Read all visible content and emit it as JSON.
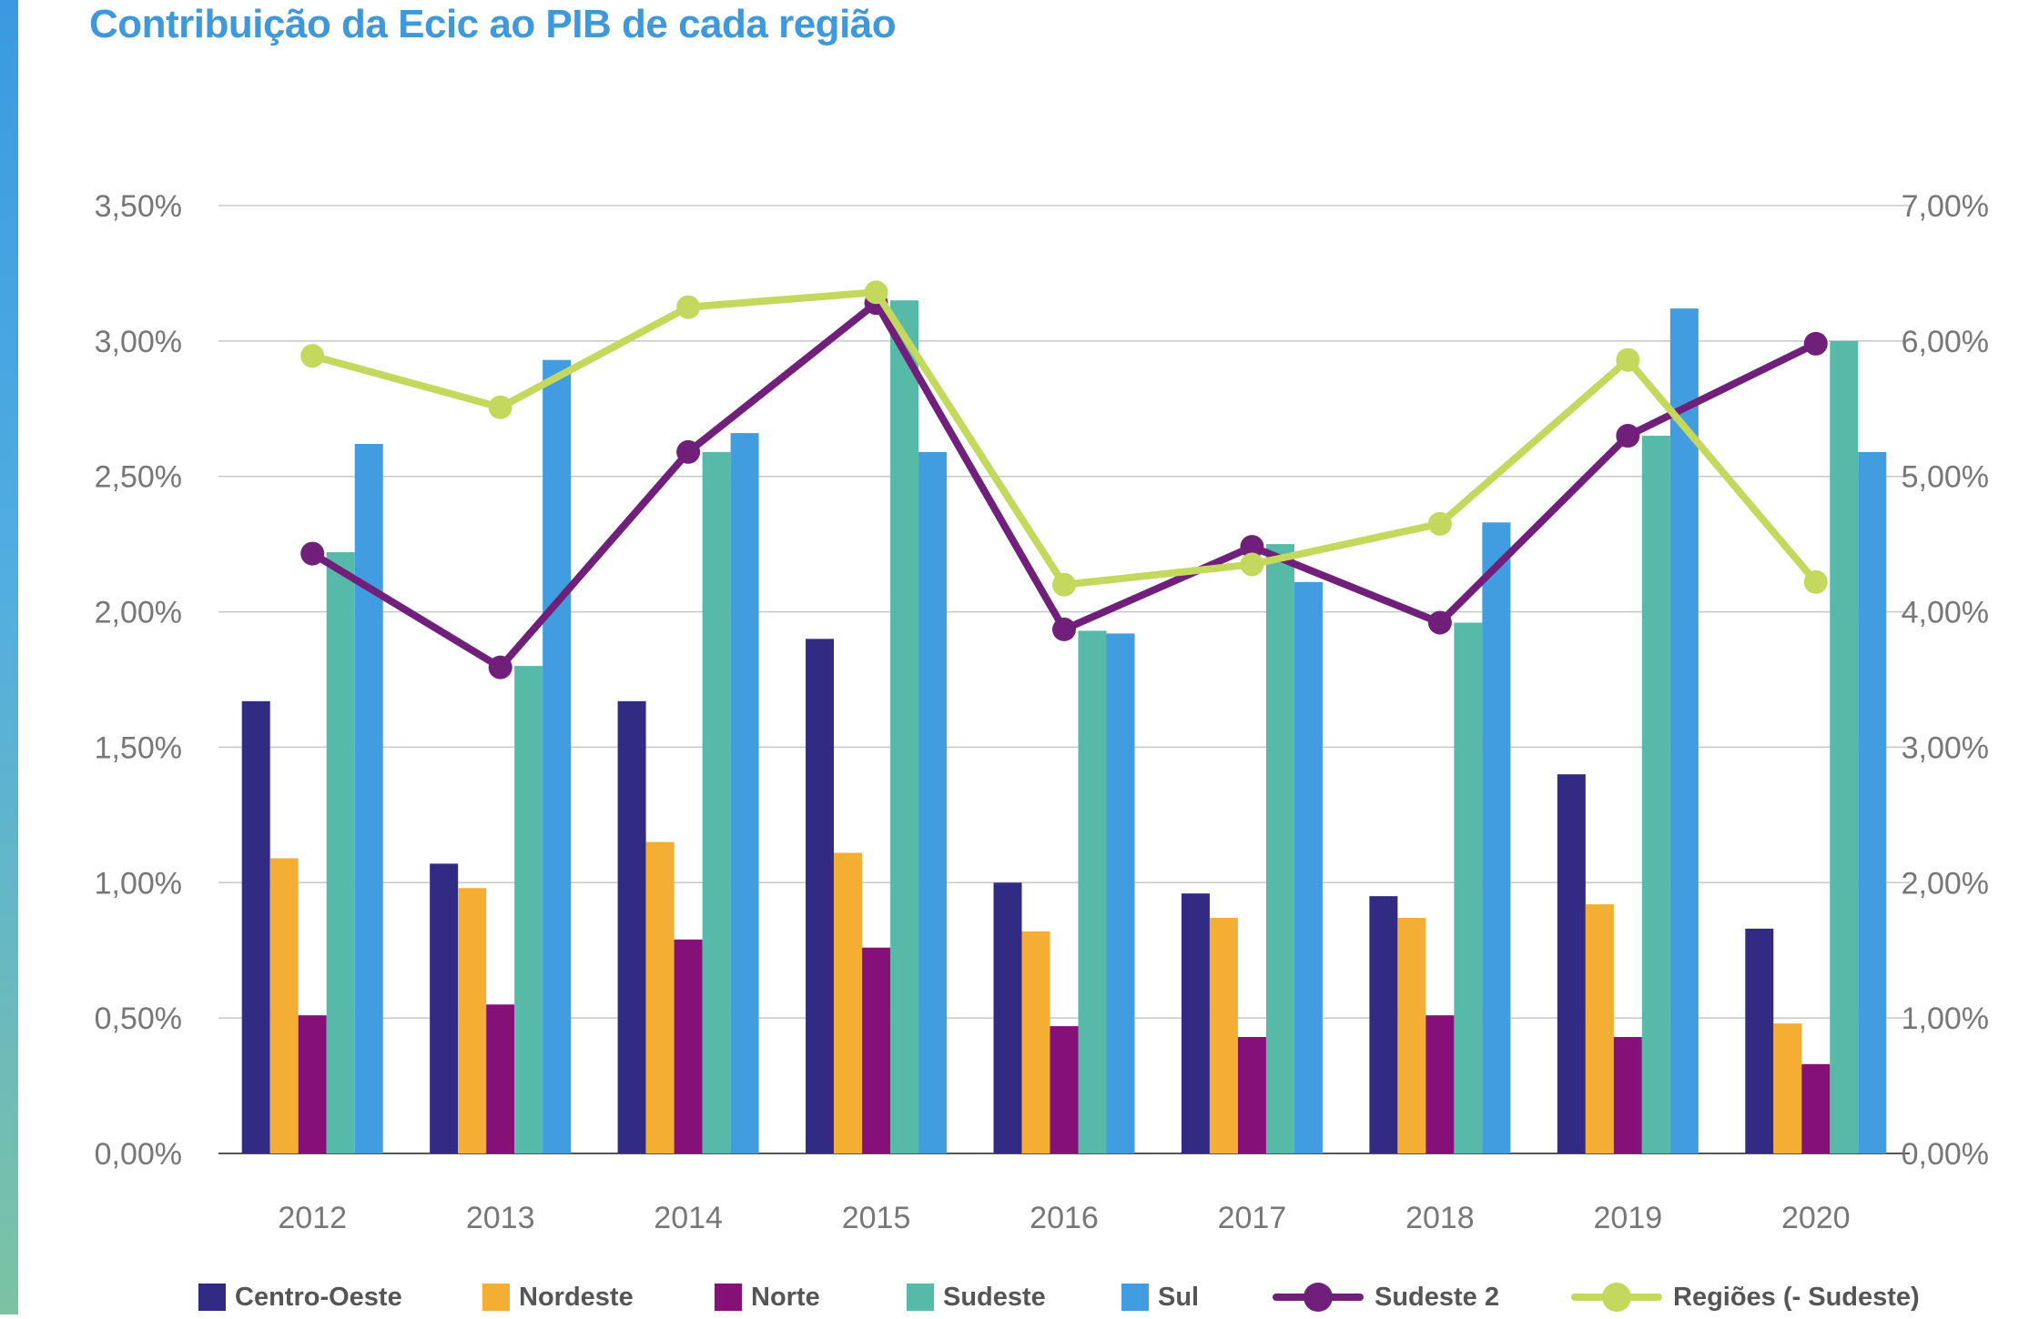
{
  "title": "Contribuição da Ecic ao PIB de cada região",
  "chart_data": {
    "type": "bar",
    "title": "Contribuição da Ecic ao PIB de cada região",
    "categories": [
      "2012",
      "2013",
      "2014",
      "2015",
      "2016",
      "2017",
      "2018",
      "2019",
      "2020"
    ],
    "y_left": {
      "range": [
        0,
        3.5
      ],
      "ticks": [
        0,
        0.5,
        1.0,
        1.5,
        2.0,
        2.5,
        3.0,
        3.5
      ],
      "tick_labels": [
        "0,00%",
        "0,50%",
        "1,00%",
        "1,50%",
        "2,00%",
        "2,50%",
        "3,00%",
        "3,50%"
      ]
    },
    "y_right": {
      "range": [
        0,
        7.0
      ],
      "ticks": [
        0,
        1,
        2,
        3,
        4,
        5,
        6,
        7
      ],
      "tick_labels": [
        "0,00%",
        "1,00%",
        "2,00%",
        "3,00%",
        "4,00%",
        "5,00%",
        "6,00%",
        "7,00%"
      ]
    },
    "grid": true,
    "legend_position": "bottom",
    "series": [
      {
        "name": "Centro-Oeste",
        "kind": "bar",
        "axis": "left",
        "color": "#322b84",
        "values": [
          1.67,
          1.07,
          1.67,
          1.9,
          1.0,
          0.96,
          0.95,
          1.4,
          0.83
        ]
      },
      {
        "name": "Nordeste",
        "kind": "bar",
        "axis": "left",
        "color": "#f3ae33",
        "values": [
          1.09,
          0.98,
          1.15,
          1.11,
          0.82,
          0.87,
          0.87,
          0.92,
          0.48
        ]
      },
      {
        "name": "Norte",
        "kind": "bar",
        "axis": "left",
        "color": "#851078",
        "values": [
          0.51,
          0.55,
          0.79,
          0.76,
          0.47,
          0.43,
          0.51,
          0.43,
          0.33
        ]
      },
      {
        "name": "Sudeste",
        "kind": "bar",
        "axis": "left",
        "color": "#57b9a8",
        "values": [
          2.22,
          1.8,
          2.59,
          3.15,
          1.93,
          2.25,
          1.96,
          2.65,
          3.0
        ]
      },
      {
        "name": "Sul",
        "kind": "bar",
        "axis": "left",
        "color": "#419ddf",
        "values": [
          2.62,
          2.93,
          2.66,
          2.59,
          1.92,
          2.11,
          2.33,
          3.12,
          2.59
        ]
      },
      {
        "name": "Sudeste 2",
        "kind": "line",
        "axis": "right",
        "color": "#70207a",
        "values": [
          4.43,
          3.59,
          5.18,
          6.28,
          3.87,
          4.48,
          3.92,
          5.3,
          5.98
        ]
      },
      {
        "name": "Regiões (- Sudeste)",
        "kind": "line",
        "axis": "right",
        "color": "#c5d85e",
        "values": [
          5.89,
          5.51,
          6.25,
          6.36,
          4.2,
          4.35,
          4.65,
          5.86,
          4.22
        ]
      }
    ]
  }
}
